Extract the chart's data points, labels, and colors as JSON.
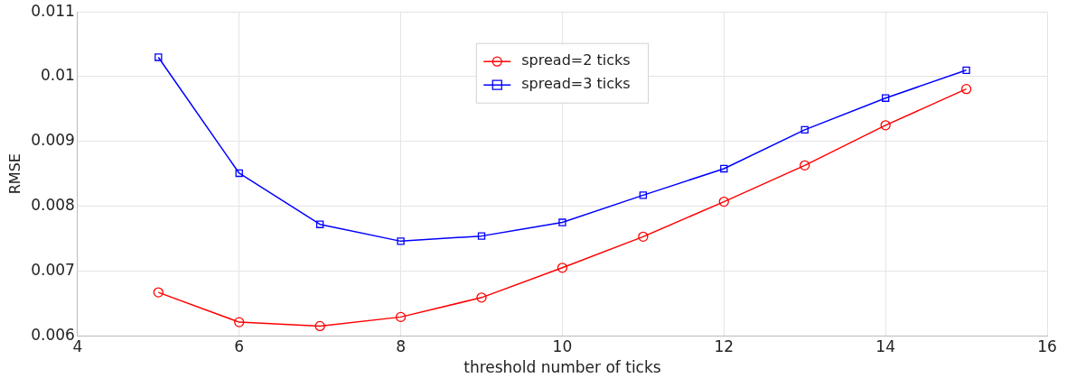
{
  "chart_data": {
    "type": "line",
    "xlabel": "threshold number of ticks",
    "ylabel": "RMSE",
    "x": [
      5,
      6,
      7,
      8,
      9,
      10,
      11,
      12,
      13,
      14,
      15
    ],
    "series": [
      {
        "name": "spread=2 ticks",
        "color": "#ff0000",
        "marker": "circle",
        "values": [
          0.00667,
          0.00621,
          0.00615,
          0.00629,
          0.00659,
          0.00705,
          0.00753,
          0.00807,
          0.00863,
          0.00925,
          0.00981
        ]
      },
      {
        "name": "spread=3 ticks",
        "color": "#0000ff",
        "marker": "square",
        "values": [
          0.0103,
          0.00851,
          0.00772,
          0.00746,
          0.00754,
          0.00775,
          0.00817,
          0.00858,
          0.00918,
          0.00967,
          0.0101
        ]
      }
    ],
    "xlim": [
      4,
      16
    ],
    "xticks": [
      4,
      6,
      8,
      10,
      12,
      14,
      16
    ],
    "ylim": [
      0.006,
      0.011
    ],
    "yticks": [
      0.006,
      0.007,
      0.008,
      0.009,
      0.01,
      0.011
    ],
    "grid": true,
    "legend": "top",
    "line_style": "solid"
  }
}
